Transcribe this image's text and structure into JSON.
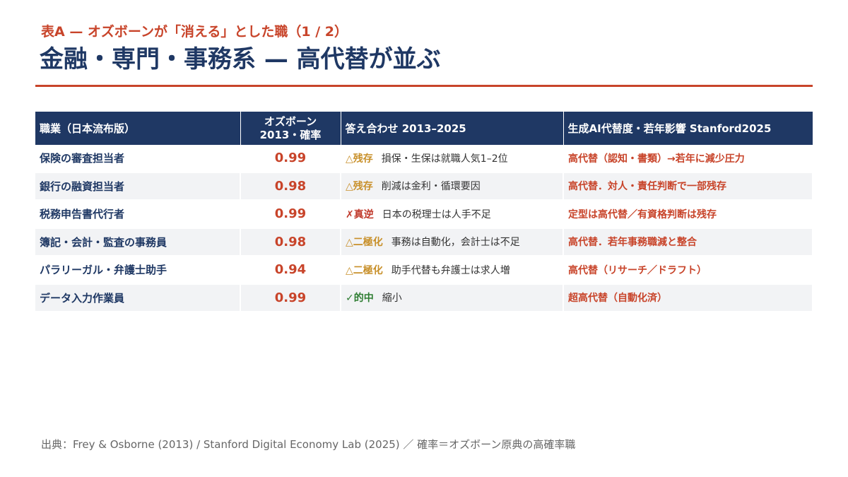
{
  "header": {
    "kicker": "表A — オズボーンが「消える」とした職（1 / 2）",
    "title": "金融・専門・事務系 — 高代替が並ぶ"
  },
  "table": {
    "columns": [
      "職業（日本流布版）",
      [
        "オズボーン",
        "2013・確率"
      ],
      "答え合わせ 2013–2025",
      "生成AI代替度・若年影響 Stanford2025"
    ],
    "rows": [
      [
        "保険の審査担当者",
        0.99,
        {
          "verdict": "△残存",
          "color": "#c8902a",
          "note": "損保・生保は就職人気1–2位"
        },
        "高代替（認知・書類）→若年に減少圧力"
      ],
      [
        "銀行の融資担当者",
        0.98,
        {
          "verdict": "△残存",
          "color": "#c8902a",
          "note": "削減は金利・循環要因"
        },
        "高代替．対人・責任判断で一部残存"
      ],
      [
        "税務申告書代行者",
        0.99,
        {
          "verdict": "✗真逆",
          "color": "#c0392b",
          "note": "日本の税理士は人手不足"
        },
        "定型は高代替／有資格判断は残存"
      ],
      [
        "簿記・会計・監査の事務員",
        0.98,
        {
          "verdict": "△二極化",
          "color": "#c8902a",
          "note": "事務は自動化，会計士は不足"
        },
        "高代替．若年事務職減と整合"
      ],
      [
        "パラリーガル・弁護士助手",
        0.94,
        {
          "verdict": "△二極化",
          "color": "#c8902a",
          "note": "助手代替も弁護士は求人増"
        },
        "高代替（リサーチ／ドラフト）"
      ],
      [
        "データ入力作業員",
        0.99,
        {
          "verdict": "✓的中",
          "color": "#2e7d32",
          "note": "縮小"
        },
        "超高代替（自動化済）"
      ]
    ]
  },
  "footer": "出典：Frey & Osborne (2013) / Stanford Digital Economy Lab (2025) ／ 確率＝オズボーン原典の高確率職"
}
